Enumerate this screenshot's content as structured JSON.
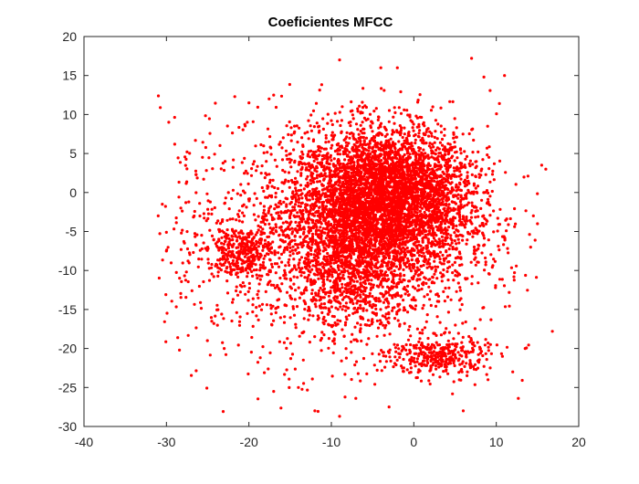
{
  "chart_data": {
    "type": "scatter",
    "title": "Coeficientes MFCC",
    "xlabel": "",
    "ylabel": "",
    "xlim": [
      -40,
      20
    ],
    "ylim": [
      -30,
      20
    ],
    "x_ticks": [
      -40,
      -30,
      -20,
      -10,
      0,
      10,
      20
    ],
    "y_ticks": [
      -30,
      -25,
      -20,
      -15,
      -10,
      -5,
      0,
      5,
      10,
      15,
      20
    ],
    "x_tick_labels": [
      "-40",
      "-30",
      "-20",
      "-10",
      "0",
      "10",
      "20"
    ],
    "y_tick_labels": [
      "-30",
      "-25",
      "-20",
      "-15",
      "-10",
      "-5",
      "0",
      "5",
      "10",
      "15",
      "20"
    ],
    "grid": false,
    "marker_color": "#ff0000",
    "clusters": [
      {
        "center": [
          -4,
          -2
        ],
        "spread": [
          5.5,
          5.0
        ],
        "count": 3200
      },
      {
        "center": [
          -2,
          1
        ],
        "spread": [
          4.5,
          3.5
        ],
        "count": 1200
      },
      {
        "center": [
          -7,
          -8
        ],
        "spread": [
          3.5,
          4.5
        ],
        "count": 800
      },
      {
        "center": [
          -21,
          -7.5
        ],
        "spread": [
          2.0,
          1.6
        ],
        "count": 300
      },
      {
        "center": [
          3,
          -21
        ],
        "spread": [
          3.0,
          1.3
        ],
        "count": 350
      },
      {
        "center": [
          -10,
          -6
        ],
        "spread": [
          10.0,
          8.0
        ],
        "count": 1800
      }
    ],
    "outliers": [
      [
        -9,
        17
      ],
      [
        -4,
        16
      ],
      [
        -2,
        16
      ],
      [
        7,
        17.2
      ],
      [
        8.5,
        14.8
      ],
      [
        11,
        15
      ],
      [
        -17,
        12.5
      ],
      [
        -20,
        11.5
      ],
      [
        -29,
        6.2
      ],
      [
        -27.5,
        5.2
      ],
      [
        -30.5,
        -1.5
      ],
      [
        -30,
        -7.5
      ],
      [
        -31,
        -3
      ],
      [
        15.5,
        3.5
      ],
      [
        16,
        3
      ],
      [
        14.5,
        -3
      ],
      [
        15,
        -4
      ],
      [
        16.8,
        -17.8
      ],
      [
        13.5,
        -20
      ],
      [
        12,
        -23
      ],
      [
        -17,
        -25.5
      ],
      [
        -12,
        -28
      ],
      [
        -3,
        -27.5
      ],
      [
        -9,
        -28.7
      ],
      [
        -24.5,
        -16.5
      ],
      [
        -23,
        -20
      ],
      [
        -25,
        -7
      ],
      [
        6,
        -28
      ],
      [
        -14,
        -25
      ],
      [
        9,
        -24
      ]
    ]
  }
}
